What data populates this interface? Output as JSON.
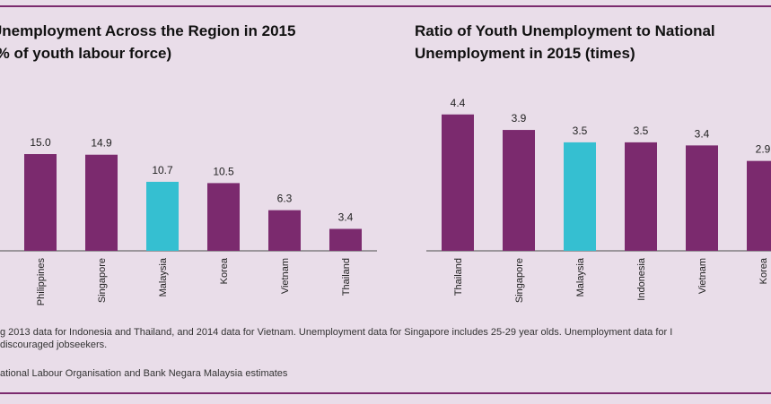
{
  "colors": {
    "bar": "#7b2a6e",
    "highlight": "#35bfd1",
    "background": "#e9dde9",
    "rule": "#7b2a6e"
  },
  "chart_data": [
    {
      "type": "bar",
      "title_lines": [
        "Unemployment Across the Region in 2015",
        "(% of youth labour force)"
      ],
      "categories": [
        "Philippines",
        "Singapore",
        "Malaysia",
        "Korea",
        "Vietnam",
        "Thailand"
      ],
      "values": [
        15.0,
        14.9,
        10.7,
        10.5,
        6.3,
        3.4
      ],
      "labels": [
        "15.0",
        "14.9",
        "10.7",
        "10.5",
        "6.3",
        "3.4"
      ],
      "highlight": "Malaysia",
      "grid": false,
      "legend": "none"
    },
    {
      "type": "bar",
      "title_lines": [
        "Ratio of Youth Unemployment to National",
        "Unemployment in 2015 (times)"
      ],
      "categories": [
        "Thailand",
        "Singapore",
        "Malaysia",
        "Indonesia",
        "Vietnam",
        "Korea"
      ],
      "values": [
        4.4,
        3.9,
        3.5,
        3.5,
        3.4,
        2.9
      ],
      "labels": [
        "4.4",
        "3.9",
        "3.5",
        "3.5",
        "3.4",
        "2.9"
      ],
      "highlight": "Malaysia",
      "grid": false,
      "legend": "none"
    }
  ],
  "notes": {
    "line1": "g 2013 data for Indonesia and Thailand, and 2014 data for Vietnam. Unemployment data for Singapore includes 25-29 year olds. Unemployment data for I",
    "line2": "discouraged jobseekers.",
    "source": "ational Labour Organisation and Bank Negara Malaysia estimates"
  }
}
